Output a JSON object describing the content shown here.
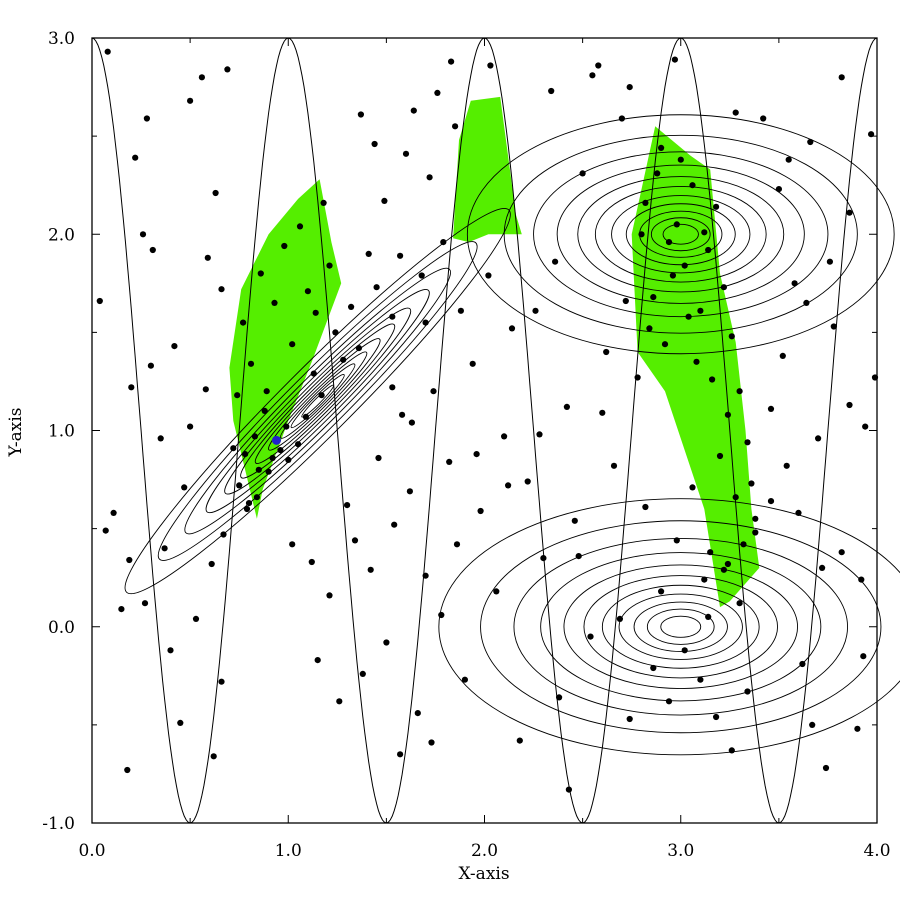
{
  "chart_data": {
    "type": "scatter",
    "title": "",
    "xlabel": "X-axis",
    "ylabel": "Y-axis",
    "xlim": [
      0.0,
      4.0
    ],
    "ylim": [
      -1.0,
      3.0
    ],
    "xticks": [
      "0.0",
      "1.0",
      "2.0",
      "3.0",
      "4.0"
    ],
    "yticks": [
      "-1.0",
      "0.0",
      "1.0",
      "2.0",
      "3.0"
    ],
    "grid": false,
    "colors": {
      "region": "#55ee00",
      "points": "#000000",
      "highlight": "#2222cc",
      "contours": "#000000"
    },
    "contour_sources": [
      {
        "name": "elongated peak",
        "cx": 1.15,
        "cy": 1.15,
        "sx": 0.95,
        "sy": 0.12,
        "angle_deg": 45
      },
      {
        "name": "upper peak",
        "cx": 3.0,
        "cy": 2.0,
        "sx": 0.75,
        "sy": 0.42,
        "angle_deg": 0
      },
      {
        "name": "lower peak",
        "cx": 3.0,
        "cy": 0.0,
        "sx": 0.85,
        "sy": 0.45,
        "angle_deg": 0
      }
    ],
    "sine_curve": {
      "amplitude": 2.0,
      "offset": 1.0,
      "period": 1.0
    },
    "highlight_point": {
      "x": 0.94,
      "y": 0.95
    },
    "shaded_regions": [
      [
        [
          0.72,
          1.05
        ],
        [
          0.7,
          1.32
        ],
        [
          0.76,
          1.72
        ],
        [
          0.9,
          2.0
        ],
        [
          1.05,
          2.18
        ],
        [
          1.16,
          2.28
        ],
        [
          1.22,
          1.96
        ],
        [
          1.27,
          1.75
        ],
        [
          1.12,
          1.35
        ],
        [
          1.0,
          1.05
        ],
        [
          0.87,
          0.7
        ],
        [
          0.84,
          0.55
        ],
        [
          0.78,
          0.8
        ]
      ],
      [
        [
          1.84,
          1.98
        ],
        [
          1.87,
          2.48
        ],
        [
          1.93,
          2.68
        ],
        [
          2.08,
          2.7
        ],
        [
          2.16,
          2.1
        ],
        [
          2.19,
          2.0
        ],
        [
          2.02,
          2.0
        ],
        [
          1.92,
          1.96
        ]
      ],
      [
        [
          2.87,
          2.55
        ],
        [
          3.05,
          2.4
        ],
        [
          3.15,
          2.33
        ],
        [
          3.2,
          1.8
        ],
        [
          3.28,
          1.45
        ],
        [
          3.33,
          1.0
        ],
        [
          3.36,
          0.6
        ],
        [
          3.4,
          0.3
        ],
        [
          3.25,
          0.13
        ],
        [
          3.2,
          0.1
        ],
        [
          3.12,
          0.6
        ],
        [
          2.92,
          1.2
        ],
        [
          2.78,
          1.4
        ],
        [
          2.75,
          2.0
        ]
      ]
    ],
    "points": [
      [
        0.04,
        1.66
      ],
      [
        0.07,
        0.49
      ],
      [
        0.11,
        0.58
      ],
      [
        0.15,
        0.09
      ],
      [
        0.19,
        0.34
      ],
      [
        0.22,
        2.39
      ],
      [
        0.26,
        2.0
      ],
      [
        0.31,
        1.92
      ],
      [
        0.35,
        0.96
      ],
      [
        0.4,
        -0.12
      ],
      [
        0.42,
        1.43
      ],
      [
        0.47,
        0.71
      ],
      [
        0.5,
        2.68
      ],
      [
        0.53,
        0.04
      ],
      [
        0.58,
        1.21
      ],
      [
        0.61,
        0.32
      ],
      [
        0.63,
        2.21
      ],
      [
        0.66,
        1.72
      ],
      [
        0.69,
        2.84
      ],
      [
        0.72,
        0.91
      ],
      [
        0.75,
        0.72
      ],
      [
        0.78,
        0.88
      ],
      [
        0.8,
        0.63
      ],
      [
        0.83,
        0.97
      ],
      [
        0.85,
        0.8
      ],
      [
        0.88,
        1.1
      ],
      [
        0.9,
        0.79
      ],
      [
        0.92,
        0.86
      ],
      [
        0.96,
        0.9
      ],
      [
        0.99,
        1.02
      ],
      [
        0.77,
        1.55
      ],
      [
        0.81,
        1.34
      ],
      [
        0.86,
        1.8
      ],
      [
        0.89,
        1.2
      ],
      [
        0.93,
        1.65
      ],
      [
        0.98,
        1.94
      ],
      [
        1.02,
        1.44
      ],
      [
        1.06,
        2.04
      ],
      [
        1.1,
        1.71
      ],
      [
        1.14,
        1.6
      ],
      [
        1.18,
        2.16
      ],
      [
        1.21,
        1.84
      ],
      [
        0.74,
        1.18
      ],
      [
        0.79,
        0.6
      ],
      [
        0.84,
        0.66
      ],
      [
        1.0,
        0.85
      ],
      [
        1.05,
        0.93
      ],
      [
        1.09,
        1.07
      ],
      [
        1.13,
        1.29
      ],
      [
        1.17,
        1.18
      ],
      [
        1.24,
        1.5
      ],
      [
        1.28,
        1.36
      ],
      [
        1.32,
        1.63
      ],
      [
        1.36,
        1.42
      ],
      [
        1.41,
        1.9
      ],
      [
        1.45,
        1.73
      ],
      [
        1.49,
        2.17
      ],
      [
        1.53,
        1.58
      ],
      [
        1.57,
        1.89
      ],
      [
        1.6,
        2.41
      ],
      [
        1.64,
        2.63
      ],
      [
        1.68,
        1.79
      ],
      [
        1.72,
        2.29
      ],
      [
        1.76,
        2.72
      ],
      [
        1.79,
        1.96
      ],
      [
        1.83,
        2.88
      ],
      [
        1.21,
        0.16
      ],
      [
        1.26,
        -0.38
      ],
      [
        1.3,
        0.62
      ],
      [
        1.34,
        0.44
      ],
      [
        1.38,
        -0.24
      ],
      [
        1.42,
        0.29
      ],
      [
        1.46,
        0.86
      ],
      [
        1.5,
        -0.08
      ],
      [
        1.54,
        0.52
      ],
      [
        1.58,
        1.08
      ],
      [
        1.62,
        0.69
      ],
      [
        1.66,
        -0.44
      ],
      [
        1.7,
        0.26
      ],
      [
        1.74,
        1.2
      ],
      [
        1.78,
        0.06
      ],
      [
        1.82,
        0.84
      ],
      [
        1.86,
        0.42
      ],
      [
        1.9,
        -0.27
      ],
      [
        1.94,
        1.34
      ],
      [
        1.98,
        0.59
      ],
      [
        2.02,
        1.79
      ],
      [
        2.06,
        0.18
      ],
      [
        2.1,
        0.97
      ],
      [
        2.14,
        1.52
      ],
      [
        2.18,
        -0.58
      ],
      [
        2.22,
        0.74
      ],
      [
        2.26,
        1.61
      ],
      [
        2.3,
        0.35
      ],
      [
        2.34,
        2.73
      ],
      [
        2.38,
        -0.36
      ],
      [
        2.42,
        1.12
      ],
      [
        2.46,
        0.54
      ],
      [
        2.5,
        2.31
      ],
      [
        2.54,
        -0.05
      ],
      [
        2.58,
        2.86
      ],
      [
        2.62,
        1.4
      ],
      [
        2.66,
        0.82
      ],
      [
        2.7,
        2.59
      ],
      [
        2.74,
        -0.47
      ],
      [
        2.78,
        1.27
      ],
      [
        2.82,
        2.16
      ],
      [
        2.86,
        1.68
      ],
      [
        2.9,
        2.44
      ],
      [
        2.94,
        1.96
      ],
      [
        2.98,
        2.05
      ],
      [
        3.02,
        1.84
      ],
      [
        3.06,
        2.25
      ],
      [
        3.1,
        1.61
      ],
      [
        3.14,
        1.92
      ],
      [
        3.18,
        2.14
      ],
      [
        3.22,
        1.73
      ],
      [
        3.26,
        1.48
      ],
      [
        3.3,
        1.2
      ],
      [
        3.34,
        0.94
      ],
      [
        3.36,
        0.73
      ],
      [
        3.38,
        0.55
      ],
      [
        3.24,
        0.32
      ],
      [
        2.8,
        2.0
      ],
      [
        2.84,
        1.52
      ],
      [
        2.88,
        2.31
      ],
      [
        2.92,
        1.44
      ],
      [
        2.96,
        1.79
      ],
      [
        3.0,
        2.38
      ],
      [
        3.04,
        1.58
      ],
      [
        3.08,
        1.35
      ],
      [
        3.12,
        2.01
      ],
      [
        3.16,
        1.26
      ],
      [
        3.2,
        0.87
      ],
      [
        3.24,
        1.08
      ],
      [
        3.28,
        0.66
      ],
      [
        3.32,
        0.42
      ],
      [
        3.12,
        0.24
      ],
      [
        3.15,
        0.38
      ],
      [
        2.82,
        0.61
      ],
      [
        2.86,
        -0.21
      ],
      [
        2.9,
        0.18
      ],
      [
        2.94,
        -0.38
      ],
      [
        2.98,
        0.44
      ],
      [
        3.02,
        -0.12
      ],
      [
        3.06,
        0.71
      ],
      [
        3.1,
        -0.27
      ],
      [
        3.14,
        0.05
      ],
      [
        3.18,
        -0.46
      ],
      [
        3.22,
        0.29
      ],
      [
        3.26,
        -0.63
      ],
      [
        3.3,
        0.12
      ],
      [
        3.34,
        -0.33
      ],
      [
        3.38,
        0.48
      ],
      [
        3.42,
        2.59
      ],
      [
        3.46,
        1.11
      ],
      [
        3.5,
        2.23
      ],
      [
        3.54,
        0.82
      ],
      [
        3.58,
        1.75
      ],
      [
        3.62,
        -0.19
      ],
      [
        3.66,
        2.47
      ],
      [
        3.7,
        0.96
      ],
      [
        3.74,
        -0.72
      ],
      [
        3.78,
        1.53
      ],
      [
        3.82,
        0.38
      ],
      [
        3.86,
        2.11
      ],
      [
        3.9,
        -0.52
      ],
      [
        3.94,
        1.02
      ],
      [
        3.97,
        2.51
      ],
      [
        3.99,
        1.27
      ],
      [
        0.08,
        2.93
      ],
      [
        0.18,
        -0.73
      ],
      [
        0.28,
        2.59
      ],
      [
        0.45,
        -0.49
      ],
      [
        0.56,
        2.8
      ],
      [
        0.62,
        -0.66
      ],
      [
        0.66,
        -0.28
      ],
      [
        1.15,
        -0.17
      ],
      [
        1.12,
        0.33
      ],
      [
        1.02,
        0.42
      ],
      [
        1.37,
        2.61
      ],
      [
        1.44,
        2.46
      ],
      [
        1.57,
        -0.65
      ],
      [
        1.73,
        -0.59
      ],
      [
        1.85,
        2.55
      ],
      [
        2.03,
        2.86
      ],
      [
        2.43,
        -0.83
      ],
      [
        2.55,
        2.81
      ],
      [
        2.74,
        2.75
      ],
      [
        2.97,
        2.89
      ],
      [
        3.28,
        2.62
      ],
      [
        3.55,
        2.38
      ],
      [
        3.67,
        -0.5
      ],
      [
        3.82,
        2.8
      ],
      [
        3.93,
        -0.15
      ],
      [
        0.3,
        1.33
      ],
      [
        0.5,
        1.02
      ],
      [
        0.59,
        1.88
      ],
      [
        0.67,
        0.47
      ],
      [
        0.37,
        0.4
      ],
      [
        0.27,
        0.12
      ],
      [
        0.2,
        1.22
      ],
      [
        1.53,
        1.22
      ],
      [
        1.63,
        1.04
      ],
      [
        1.7,
        1.55
      ],
      [
        1.88,
        1.61
      ],
      [
        1.96,
        0.88
      ],
      [
        2.12,
        0.72
      ],
      [
        2.28,
        0.98
      ],
      [
        2.36,
        1.86
      ],
      [
        2.48,
        0.36
      ],
      [
        2.6,
        1.09
      ],
      [
        2.69,
        0.04
      ],
      [
        2.72,
        1.66
      ],
      [
        3.46,
        0.64
      ],
      [
        3.52,
        1.38
      ],
      [
        3.6,
        0.58
      ],
      [
        3.64,
        1.65
      ],
      [
        3.72,
        0.3
      ],
      [
        3.76,
        1.86
      ],
      [
        3.86,
        1.13
      ],
      [
        3.92,
        0.24
      ]
    ]
  }
}
